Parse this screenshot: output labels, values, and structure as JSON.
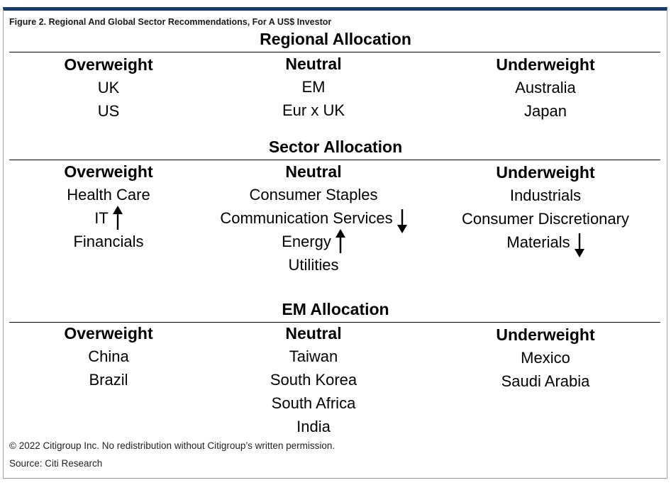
{
  "figure_title": "Figure 2. Regional And Global Sector Recommendations, For A US$ Investor",
  "sections": [
    {
      "title": "Regional Allocation",
      "columns": [
        {
          "header": "Overweight",
          "items": [
            {
              "label": "UK",
              "arrow": ""
            },
            {
              "label": "US",
              "arrow": ""
            }
          ]
        },
        {
          "header": "Neutral",
          "items": [
            {
              "label": "EM",
              "arrow": ""
            },
            {
              "label": "Eur x UK",
              "arrow": ""
            }
          ]
        },
        {
          "header": "Underweight",
          "items": [
            {
              "label": "Australia",
              "arrow": ""
            },
            {
              "label": "Japan",
              "arrow": ""
            }
          ]
        }
      ]
    },
    {
      "title": "Sector Allocation",
      "columns": [
        {
          "header": "Overweight",
          "items": [
            {
              "label": "Health Care",
              "arrow": ""
            },
            {
              "label": "IT",
              "arrow": "up"
            },
            {
              "label": "Financials",
              "arrow": ""
            }
          ]
        },
        {
          "header": "Neutral",
          "items": [
            {
              "label": "Consumer Staples",
              "arrow": ""
            },
            {
              "label": "Communication Services",
              "arrow": "down"
            },
            {
              "label": "Energy",
              "arrow": "up"
            },
            {
              "label": "Utilities",
              "arrow": ""
            }
          ]
        },
        {
          "header": "Underweight",
          "items": [
            {
              "label": "Industrials",
              "arrow": ""
            },
            {
              "label": "Consumer Discretionary",
              "arrow": ""
            },
            {
              "label": "Materials",
              "arrow": "down"
            }
          ]
        }
      ]
    },
    {
      "title": "EM Allocation",
      "columns": [
        {
          "header": "Overweight",
          "items": [
            {
              "label": "China",
              "arrow": ""
            },
            {
              "label": "Brazil",
              "arrow": ""
            }
          ]
        },
        {
          "header": "Neutral",
          "items": [
            {
              "label": "Taiwan",
              "arrow": ""
            },
            {
              "label": "South Korea",
              "arrow": ""
            },
            {
              "label": "South Africa",
              "arrow": ""
            },
            {
              "label": "India",
              "arrow": ""
            }
          ]
        },
        {
          "header": "Underweight",
          "items": [
            {
              "label": "Mexico",
              "arrow": ""
            },
            {
              "label": "Saudi Arabia",
              "arrow": ""
            }
          ]
        }
      ]
    }
  ],
  "copyright": "© 2022 Citigroup Inc. No redistribution without Citigroup’s written permission.",
  "source": "Source: Citi Research",
  "colors": {
    "top_border": "#1c3a6b",
    "frame_border": "#9aa3ad"
  }
}
